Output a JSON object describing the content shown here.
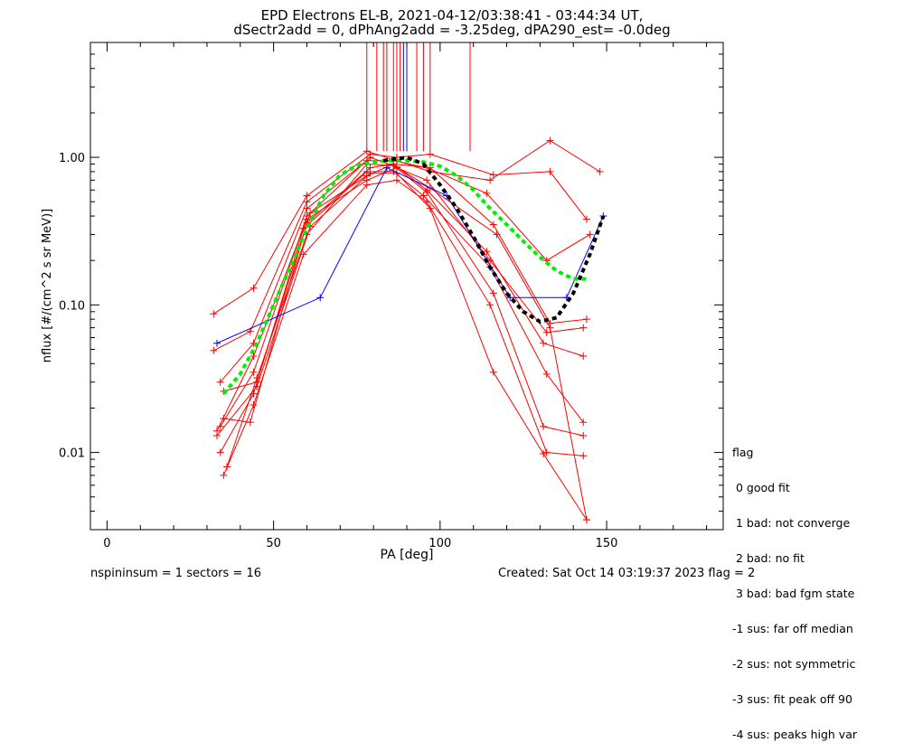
{
  "header": {
    "title_line1": "EPD Electrons EL-B, 2021-04-12/03:38:41 - 03:44:34 UT,",
    "title_line2": "dSectr2add = 0, dPhAng2add = -3.25deg, dPA290_est=  -0.0deg"
  },
  "footer": {
    "left": "nspininsum =  1  sectors = 16",
    "right": "Created: Sat Oct 14 03:19:37 2023   flag = 2"
  },
  "legend": {
    "title": "flag",
    "items": [
      " 0 good fit",
      " 1 bad: not converge",
      " 2 bad: no fit",
      " 3 bad: bad fgm state",
      "-1 sus: far off median",
      "-2 sus: not symmetric",
      "-3 sus: fit peak off 90",
      "-4 sus: peaks high var"
    ]
  },
  "chart_data": {
    "type": "line",
    "title": "EPD Electrons EL-B, 2021-04-12/03:38:41 - 03:44:34 UT,",
    "xlabel": "PA [deg]",
    "ylabel": "nflux [#/(cm^2 s sr MeV)]",
    "xlim": [
      -5,
      185
    ],
    "ylim": [
      0.003,
      6.0
    ],
    "ylog": true,
    "xticks": [
      0,
      50,
      100,
      150
    ],
    "yticks": [
      {
        "value": 0.01,
        "label": "0.01"
      },
      {
        "value": 0.1,
        "label": "0.10"
      },
      {
        "value": 1.0,
        "label": "1.00"
      }
    ],
    "colors": {
      "sweeps": "#ff0000",
      "selected": "#0000ff",
      "fit_green": "#00ee00",
      "fit_black": "#000000"
    },
    "vertical_markers": {
      "red_x": [
        78,
        81,
        83,
        84,
        86,
        87,
        88,
        90,
        93,
        95,
        97,
        109
      ],
      "blue_x": [
        89,
        90
      ],
      "y_bottom": 1.1
    },
    "series": [
      {
        "color": "red",
        "x": [
          32,
          44,
          60,
          78,
          87,
          97,
          115,
          133,
          148
        ],
        "y": [
          0.087,
          0.13,
          0.55,
          1.1,
          0.95,
          0.8,
          0.7,
          1.3,
          0.8
        ]
      },
      {
        "color": "red",
        "x": [
          32,
          43,
          60,
          79,
          87,
          97,
          116,
          133,
          144
        ],
        "y": [
          0.049,
          0.066,
          0.5,
          1.05,
          1.0,
          1.05,
          0.76,
          0.8,
          0.38
        ]
      },
      {
        "color": "red",
        "x": [
          34,
          44,
          60,
          78,
          86,
          96,
          114,
          132,
          145
        ],
        "y": [
          0.03,
          0.055,
          0.45,
          0.95,
          0.95,
          0.85,
          0.57,
          0.2,
          0.3
        ]
      },
      {
        "color": "red",
        "x": [
          35,
          45,
          61,
          78,
          86,
          97,
          116,
          133,
          144
        ],
        "y": [
          0.026,
          0.03,
          0.42,
          0.75,
          0.9,
          0.85,
          0.35,
          0.075,
          0.08
        ]
      },
      {
        "color": "red",
        "x": [
          33,
          44,
          60,
          78,
          87,
          96,
          115,
          132,
          143
        ],
        "y": [
          0.014,
          0.045,
          0.38,
          0.7,
          0.85,
          0.7,
          0.2,
          0.065,
          0.07
        ]
      },
      {
        "color": "red",
        "x": [
          35,
          43,
          60,
          79,
          86,
          96,
          114,
          131,
          143
        ],
        "y": [
          0.017,
          0.016,
          0.36,
          0.85,
          0.9,
          0.6,
          0.23,
          0.055,
          0.045
        ]
      },
      {
        "color": "red",
        "x": [
          34,
          44,
          59,
          78,
          86,
          95,
          115,
          132,
          143
        ],
        "y": [
          0.01,
          0.025,
          0.33,
          0.8,
          0.8,
          0.55,
          0.18,
          0.034,
          0.016
        ]
      },
      {
        "color": "red",
        "x": [
          36,
          45,
          60,
          78,
          86,
          96,
          116,
          131,
          143
        ],
        "y": [
          0.008,
          0.032,
          0.3,
          0.9,
          0.88,
          0.58,
          0.12,
          0.015,
          0.013
        ]
      },
      {
        "color": "red",
        "x": [
          35,
          44,
          59,
          78,
          87,
          96,
          115,
          132,
          143
        ],
        "y": [
          0.007,
          0.021,
          0.22,
          0.65,
          0.7,
          0.5,
          0.1,
          0.01,
          0.0095
        ]
      },
      {
        "color": "red",
        "x": [
          33,
          45,
          61,
          79,
          87,
          97,
          116,
          131,
          144
        ],
        "y": [
          0.013,
          0.028,
          0.34,
          0.78,
          0.78,
          0.45,
          0.035,
          0.0098,
          0.0035
        ]
      },
      {
        "color": "red",
        "x": [
          34,
          44,
          60,
          79,
          87,
          97,
          117,
          133,
          144
        ],
        "y": [
          0.015,
          0.035,
          0.4,
          1.0,
          0.86,
          0.62,
          0.3,
          0.07,
          0.0035
        ]
      },
      {
        "color": "blue",
        "x": [
          33,
          64,
          84,
          102,
          121,
          138,
          149
        ],
        "y": [
          0.055,
          0.112,
          0.85,
          0.55,
          0.112,
          0.112,
          0.4
        ]
      }
    ],
    "fits": [
      {
        "color": "green",
        "x": [
          35,
          40,
          45,
          50,
          55,
          60,
          65,
          70,
          75,
          80,
          85,
          90,
          95,
          100,
          105,
          110,
          115,
          120,
          125,
          130,
          135,
          140,
          145
        ],
        "y": [
          0.025,
          0.034,
          0.055,
          0.1,
          0.18,
          0.33,
          0.55,
          0.76,
          0.88,
          0.93,
          0.95,
          0.95,
          0.93,
          0.87,
          0.75,
          0.6,
          0.45,
          0.35,
          0.27,
          0.21,
          0.17,
          0.15,
          0.15
        ]
      },
      {
        "color": "black",
        "x": [
          83,
          90,
          95,
          100,
          105,
          110,
          115,
          120,
          125,
          130,
          135,
          140,
          145,
          149
        ],
        "y": [
          0.95,
          1.0,
          0.9,
          0.65,
          0.45,
          0.29,
          0.18,
          0.12,
          0.09,
          0.077,
          0.082,
          0.12,
          0.22,
          0.4
        ]
      }
    ]
  }
}
